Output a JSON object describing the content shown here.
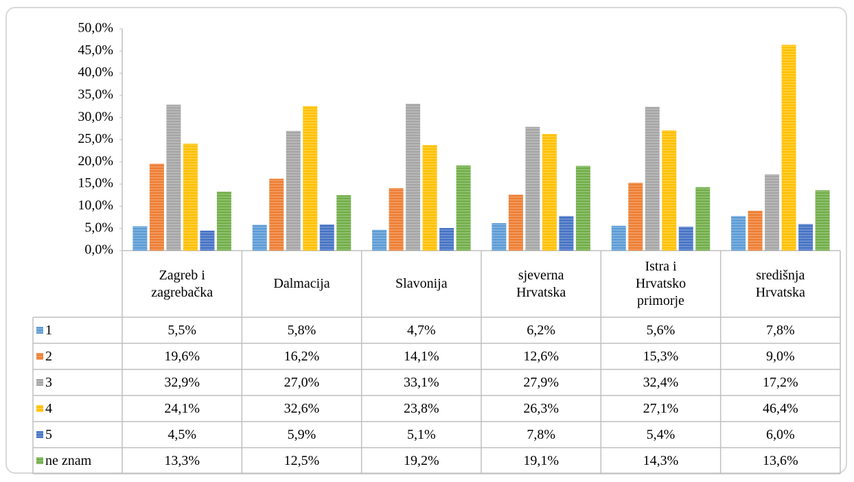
{
  "chart_data": {
    "type": "bar",
    "categories": [
      "Zagreb i\nzagrebačka",
      "Dalmacija",
      "Slavonija",
      "sjeverna\nHrvatska",
      "Istra i\nHrvatsko\nprimorje",
      "središnja\nHrvatska"
    ],
    "ylim": [
      0,
      50
    ],
    "yticks": [
      {
        "value": 0,
        "label": "0,0%"
      },
      {
        "value": 5,
        "label": "5,0%"
      },
      {
        "value": 10,
        "label": "10,0%"
      },
      {
        "value": 15,
        "label": "15,0%"
      },
      {
        "value": 20,
        "label": "20,0%"
      },
      {
        "value": 25,
        "label": "25,0%"
      },
      {
        "value": 30,
        "label": "30,0%"
      },
      {
        "value": 35,
        "label": "35,0%"
      },
      {
        "value": 40,
        "label": "40,0%"
      },
      {
        "value": 45,
        "label": "45,0%"
      },
      {
        "value": 50,
        "label": "50,0%"
      }
    ],
    "series": [
      {
        "name": "1",
        "color": "#5b9bd5",
        "values": [
          5.5,
          5.8,
          4.7,
          6.2,
          5.6,
          7.8
        ],
        "value_labels": [
          "5,5%",
          "5,8%",
          "4,7%",
          "6,2%",
          "5,6%",
          "7,8%"
        ]
      },
      {
        "name": "2",
        "color": "#ed7d31",
        "values": [
          19.6,
          16.2,
          14.1,
          12.6,
          15.3,
          9.0
        ],
        "value_labels": [
          "19,6%",
          "16,2%",
          "14,1%",
          "12,6%",
          "15,3%",
          "9,0%"
        ]
      },
      {
        "name": "3",
        "color": "#a5a5a5",
        "values": [
          32.9,
          27.0,
          33.1,
          27.9,
          32.4,
          17.2
        ],
        "value_labels": [
          "32,9%",
          "27,0%",
          "33,1%",
          "27,9%",
          "32,4%",
          "17,2%"
        ]
      },
      {
        "name": "4",
        "color": "#ffc000",
        "values": [
          24.1,
          32.6,
          23.8,
          26.3,
          27.1,
          46.4
        ],
        "value_labels": [
          "24,1%",
          "32,6%",
          "23,8%",
          "26,3%",
          "27,1%",
          "46,4%"
        ]
      },
      {
        "name": "5",
        "color": "#4472c4",
        "values": [
          4.5,
          5.9,
          5.1,
          7.8,
          5.4,
          6.0
        ],
        "value_labels": [
          "4,5%",
          "5,9%",
          "5,1%",
          "7,8%",
          "5,4%",
          "6,0%"
        ]
      },
      {
        "name": "ne znam",
        "color": "#70ad47",
        "values": [
          13.3,
          12.5,
          19.2,
          19.1,
          14.3,
          13.6
        ],
        "value_labels": [
          "13,3%",
          "12,5%",
          "19,2%",
          "19,1%",
          "14,3%",
          "13,6%"
        ]
      }
    ]
  }
}
